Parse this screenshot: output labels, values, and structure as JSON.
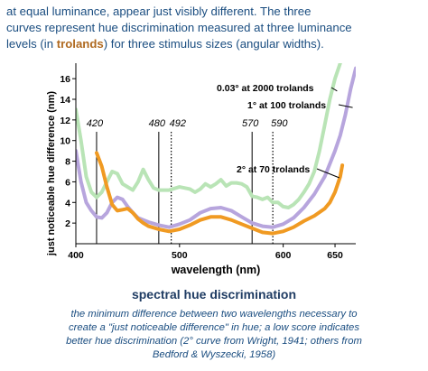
{
  "intro": {
    "line1": "at equal luminance, appear just visibly different. The three",
    "line2": "curves represent hue discrimination measured at three luminance",
    "line3_pre": "levels (in ",
    "line3_hl": "trolands",
    "line3_post": ") for three stimulus sizes (angular widths)."
  },
  "figure_title": "spectral hue discrimination",
  "caption": {
    "line1": "the minimum difference between two wavelengths necessary to",
    "line2": "create a \"just noticeable difference\" in hue; a low score indicates",
    "line3": "better hue discrimination (2° curve from Wright, 1941; others from",
    "line4": "Bedford & Wyszecki, 1958)"
  },
  "chart_data": {
    "type": "line",
    "xlabel": "wavelength (nm)",
    "ylabel": "just noticeable hue difference (nm)",
    "xlim": [
      400,
      670
    ],
    "ylim": [
      0,
      17.5
    ],
    "x_ticks": [
      400,
      500,
      600,
      650
    ],
    "y_ticks": [
      2,
      4,
      6,
      8,
      10,
      12,
      14,
      16
    ],
    "grid": false,
    "series": [
      {
        "name": "0.03° at 2000 trolands",
        "color": "#b9e4b6",
        "points": [
          [
            400,
            13
          ],
          [
            405,
            10
          ],
          [
            410,
            6.5
          ],
          [
            415,
            5
          ],
          [
            420,
            4.5
          ],
          [
            425,
            5
          ],
          [
            430,
            6
          ],
          [
            435,
            7
          ],
          [
            440,
            6.8
          ],
          [
            445,
            5.8
          ],
          [
            450,
            5.5
          ],
          [
            455,
            5.2
          ],
          [
            460,
            6
          ],
          [
            465,
            7.2
          ],
          [
            470,
            6.2
          ],
          [
            475,
            5.4
          ],
          [
            480,
            5.2
          ],
          [
            490,
            5.2
          ],
          [
            500,
            5.5
          ],
          [
            510,
            5.3
          ],
          [
            515,
            5
          ],
          [
            520,
            5.3
          ],
          [
            525,
            5.8
          ],
          [
            530,
            5.5
          ],
          [
            535,
            5.8
          ],
          [
            540,
            6.2
          ],
          [
            545,
            5.6
          ],
          [
            550,
            5.9
          ],
          [
            555,
            5.9
          ],
          [
            560,
            5.8
          ],
          [
            565,
            5.5
          ],
          [
            570,
            4.6
          ],
          [
            575,
            4.5
          ],
          [
            580,
            4.3
          ],
          [
            585,
            4.5
          ],
          [
            590,
            4
          ],
          [
            595,
            4
          ],
          [
            600,
            3.6
          ],
          [
            605,
            3.5
          ],
          [
            610,
            3.8
          ],
          [
            615,
            4.3
          ],
          [
            620,
            5
          ],
          [
            625,
            5.8
          ],
          [
            630,
            7
          ],
          [
            635,
            9
          ],
          [
            640,
            11.5
          ],
          [
            645,
            14
          ],
          [
            650,
            16
          ],
          [
            655,
            17.5
          ]
        ]
      },
      {
        "name": "1° at 100 trolands",
        "color": "#b7a5dd",
        "points": [
          [
            400,
            9
          ],
          [
            405,
            6
          ],
          [
            410,
            4
          ],
          [
            415,
            3.2
          ],
          [
            420,
            2.6
          ],
          [
            425,
            2.5
          ],
          [
            430,
            3
          ],
          [
            435,
            4
          ],
          [
            440,
            4.5
          ],
          [
            445,
            4.3
          ],
          [
            450,
            3.6
          ],
          [
            455,
            3
          ],
          [
            460,
            2.5
          ],
          [
            470,
            2.1
          ],
          [
            480,
            1.8
          ],
          [
            490,
            1.6
          ],
          [
            500,
            1.9
          ],
          [
            510,
            2.3
          ],
          [
            520,
            3
          ],
          [
            530,
            3.4
          ],
          [
            540,
            3.5
          ],
          [
            550,
            3.2
          ],
          [
            560,
            2.6
          ],
          [
            570,
            2
          ],
          [
            580,
            1.7
          ],
          [
            590,
            1.6
          ],
          [
            600,
            1.9
          ],
          [
            610,
            2.5
          ],
          [
            620,
            3.5
          ],
          [
            630,
            4.8
          ],
          [
            640,
            6.5
          ],
          [
            650,
            9
          ],
          [
            655,
            10.5
          ],
          [
            660,
            12.5
          ],
          [
            665,
            15
          ],
          [
            670,
            17
          ]
        ]
      },
      {
        "name": "2° at 70 trolands",
        "color": "#f09a22",
        "points": [
          [
            420,
            8.8
          ],
          [
            425,
            7.5
          ],
          [
            430,
            5.5
          ],
          [
            435,
            3.8
          ],
          [
            440,
            3.2
          ],
          [
            445,
            3.3
          ],
          [
            450,
            3.4
          ],
          [
            455,
            3
          ],
          [
            460,
            2.4
          ],
          [
            465,
            2
          ],
          [
            470,
            1.7
          ],
          [
            480,
            1.4
          ],
          [
            490,
            1.2
          ],
          [
            500,
            1.4
          ],
          [
            510,
            1.8
          ],
          [
            520,
            2.3
          ],
          [
            530,
            2.6
          ],
          [
            540,
            2.6
          ],
          [
            550,
            2.3
          ],
          [
            560,
            1.9
          ],
          [
            570,
            1.5
          ],
          [
            580,
            1.1
          ],
          [
            590,
            1
          ],
          [
            600,
            1.2
          ],
          [
            610,
            1.6
          ],
          [
            620,
            2.2
          ],
          [
            630,
            2.7
          ],
          [
            640,
            3.4
          ],
          [
            645,
            4
          ],
          [
            650,
            5
          ],
          [
            655,
            6.5
          ],
          [
            657,
            7.6
          ]
        ]
      }
    ],
    "annotations": [
      {
        "text": "0.03° at 2000 trolands",
        "target_x": 652,
        "target_y": 14.8
      },
      {
        "text": "1° at 100 trolands",
        "target_x": 667,
        "target_y": 13.2
      },
      {
        "text": "2° at 70 trolands",
        "target_x": 654,
        "target_y": 6.4
      }
    ],
    "markers": [
      {
        "label": "420",
        "x": 420,
        "style": "solid"
      },
      {
        "label": "480",
        "x": 480,
        "style": "solid"
      },
      {
        "label": "492",
        "x": 492,
        "style": "dotted"
      },
      {
        "label": "570",
        "x": 570,
        "style": "solid"
      },
      {
        "label": "590",
        "x": 590,
        "style": "dotted"
      }
    ]
  }
}
